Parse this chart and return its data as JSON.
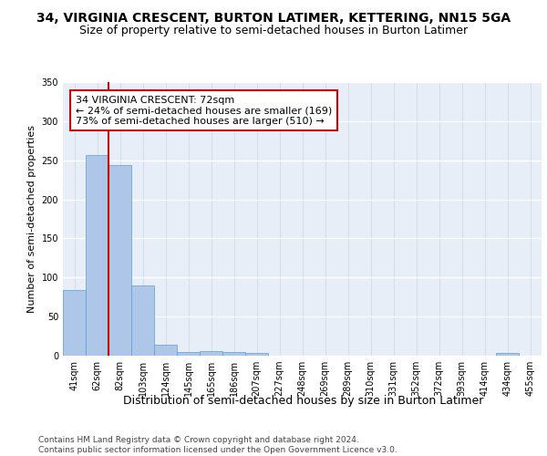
{
  "title": "34, VIRGINIA CRESCENT, BURTON LATIMER, KETTERING, NN15 5GA",
  "subtitle": "Size of property relative to semi-detached houses in Burton Latimer",
  "xlabel": "Distribution of semi-detached houses by size in Burton Latimer",
  "ylabel": "Number of semi-detached properties",
  "categories": [
    "41sqm",
    "62sqm",
    "82sqm",
    "103sqm",
    "124sqm",
    "145sqm",
    "165sqm",
    "186sqm",
    "207sqm",
    "227sqm",
    "248sqm",
    "269sqm",
    "289sqm",
    "310sqm",
    "331sqm",
    "352sqm",
    "372sqm",
    "393sqm",
    "414sqm",
    "434sqm",
    "455sqm"
  ],
  "values": [
    84,
    257,
    244,
    90,
    14,
    5,
    6,
    5,
    4,
    0,
    0,
    0,
    0,
    0,
    0,
    0,
    0,
    0,
    0,
    3,
    0
  ],
  "bar_color": "#aec6e8",
  "bar_edge_color": "#5a9fd4",
  "reference_line_color": "#cc0000",
  "annotation_text": "34 VIRGINIA CRESCENT: 72sqm\n← 24% of semi-detached houses are smaller (169)\n73% of semi-detached houses are larger (510) →",
  "annotation_box_color": "#ffffff",
  "annotation_box_edge_color": "#cc0000",
  "ylim": [
    0,
    350
  ],
  "yticks": [
    0,
    50,
    100,
    150,
    200,
    250,
    300,
    350
  ],
  "background_color": "#e8eef8",
  "footer_text": "Contains HM Land Registry data © Crown copyright and database right 2024.\nContains public sector information licensed under the Open Government Licence v3.0.",
  "title_fontsize": 10,
  "subtitle_fontsize": 9,
  "xlabel_fontsize": 9,
  "ylabel_fontsize": 8,
  "tick_fontsize": 7,
  "annotation_fontsize": 8,
  "footer_fontsize": 6.5
}
